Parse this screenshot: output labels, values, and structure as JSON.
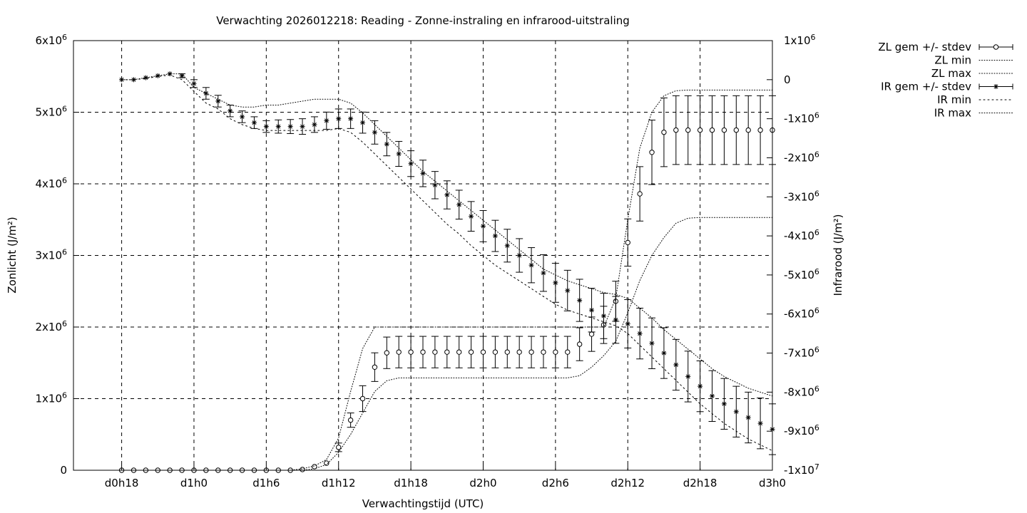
{
  "chart_data": {
    "type": "line",
    "title": "Verwachting 2026012218: Reading - Zonne-instraling en infrarood-uitstraling",
    "xlabel": "Verwachtingstijd (UTC)",
    "ylabel_left": "Zonlicht (J/m²)",
    "ylabel_right": "Infrarood (J/m²)",
    "x_unit": "forecast hour",
    "xlim": [
      14,
      72
    ],
    "x_ticks": [
      {
        "x": 18,
        "label": "d0h18"
      },
      {
        "x": 24,
        "label": "d1h0"
      },
      {
        "x": 30,
        "label": "d1h6"
      },
      {
        "x": 36,
        "label": "d1h12"
      },
      {
        "x": 42,
        "label": "d1h18"
      },
      {
        "x": 48,
        "label": "d2h0"
      },
      {
        "x": 54,
        "label": "d2h6"
      },
      {
        "x": 60,
        "label": "d2h12"
      },
      {
        "x": 66,
        "label": "d2h18"
      },
      {
        "x": 72,
        "label": "d3h0"
      }
    ],
    "ylim_left": [
      0,
      6000000
    ],
    "y_ticks_left": [
      {
        "v": 0,
        "base": "0",
        "exp": ""
      },
      {
        "v": 1000000,
        "base": "1x10",
        "exp": "6"
      },
      {
        "v": 2000000,
        "base": "2x10",
        "exp": "6"
      },
      {
        "v": 3000000,
        "base": "3x10",
        "exp": "6"
      },
      {
        "v": 4000000,
        "base": "4x10",
        "exp": "6"
      },
      {
        "v": 5000000,
        "base": "5x10",
        "exp": "6"
      },
      {
        "v": 6000000,
        "base": "6x10",
        "exp": "6"
      }
    ],
    "ylim_right": [
      -10000000,
      1000000
    ],
    "y_ticks_right": [
      {
        "v": 1000000,
        "base": "1x10",
        "exp": "6"
      },
      {
        "v": 0,
        "base": "0",
        "exp": ""
      },
      {
        "v": -1000000,
        "base": "-1x10",
        "exp": "6"
      },
      {
        "v": -2000000,
        "base": "-2x10",
        "exp": "6"
      },
      {
        "v": -3000000,
        "base": "-3x10",
        "exp": "6"
      },
      {
        "v": -4000000,
        "base": "-4x10",
        "exp": "6"
      },
      {
        "v": -5000000,
        "base": "-5x10",
        "exp": "6"
      },
      {
        "v": -6000000,
        "base": "-6x10",
        "exp": "6"
      },
      {
        "v": -7000000,
        "base": "-7x10",
        "exp": "6"
      },
      {
        "v": -8000000,
        "base": "-8x10",
        "exp": "6"
      },
      {
        "v": -9000000,
        "base": "-9x10",
        "exp": "6"
      },
      {
        "v": -10000000,
        "base": "-1x10",
        "exp": "7"
      }
    ],
    "grid": true,
    "legend_position": "outside right, top",
    "legend": [
      "ZL gem +/- stdev",
      "ZL min",
      "ZL max",
      "IR gem +/- stdev",
      "IR min",
      "IR max"
    ],
    "x": [
      18,
      19,
      20,
      21,
      22,
      23,
      24,
      25,
      26,
      27,
      28,
      29,
      30,
      31,
      32,
      33,
      34,
      35,
      36,
      37,
      38,
      39,
      40,
      41,
      42,
      43,
      44,
      45,
      46,
      47,
      48,
      49,
      50,
      51,
      52,
      53,
      54,
      55,
      56,
      57,
      58,
      59,
      60,
      61,
      62,
      63,
      64,
      65,
      66,
      67,
      68,
      69,
      70,
      71,
      72
    ],
    "series": [
      {
        "name": "ZL gem +/- stdev",
        "axis": "left",
        "marker": "circle",
        "values": [
          0,
          0,
          0,
          0,
          0,
          0,
          0,
          0,
          0,
          0,
          0,
          0,
          0,
          0,
          0,
          10000,
          50000,
          100000,
          320000,
          700000,
          1000000,
          1440000,
          1640000,
          1650000,
          1650000,
          1650000,
          1650000,
          1650000,
          1650000,
          1650000,
          1650000,
          1650000,
          1650000,
          1650000,
          1650000,
          1650000,
          1650000,
          1650000,
          1760000,
          1900000,
          2030000,
          2360000,
          3180000,
          3860000,
          4440000,
          4720000,
          4750000,
          4750000,
          4750000,
          4750000,
          4750000,
          4750000,
          4750000,
          4750000,
          4750000
        ],
        "stdev": [
          0,
          0,
          0,
          0,
          0,
          0,
          0,
          0,
          0,
          0,
          0,
          0,
          0,
          0,
          0,
          0,
          0,
          0,
          60000,
          100000,
          180000,
          200000,
          220000,
          220000,
          220000,
          220000,
          220000,
          220000,
          220000,
          220000,
          220000,
          220000,
          220000,
          220000,
          220000,
          220000,
          220000,
          220000,
          230000,
          240000,
          260000,
          280000,
          330000,
          380000,
          450000,
          480000,
          480000,
          480000,
          480000,
          480000,
          480000,
          480000,
          480000,
          480000,
          480000
        ]
      },
      {
        "name": "ZL min",
        "axis": "left",
        "values": [
          0,
          0,
          0,
          0,
          0,
          0,
          0,
          0,
          0,
          0,
          0,
          0,
          0,
          0,
          0,
          0,
          20000,
          80000,
          250000,
          500000,
          800000,
          1100000,
          1250000,
          1290000,
          1290000,
          1290000,
          1290000,
          1290000,
          1290000,
          1290000,
          1290000,
          1290000,
          1290000,
          1290000,
          1290000,
          1290000,
          1290000,
          1290000,
          1320000,
          1440000,
          1600000,
          1800000,
          2200000,
          2650000,
          3000000,
          3250000,
          3450000,
          3520000,
          3530000,
          3530000,
          3530000,
          3530000,
          3530000,
          3530000,
          3530000
        ]
      },
      {
        "name": "ZL max",
        "axis": "left",
        "values": [
          0,
          0,
          0,
          0,
          0,
          0,
          0,
          0,
          0,
          0,
          0,
          0,
          0,
          0,
          0,
          20000,
          60000,
          150000,
          450000,
          1100000,
          1700000,
          2000000,
          2000000,
          2000000,
          2000000,
          2000000,
          2000000,
          2000000,
          2000000,
          2000000,
          2000000,
          2000000,
          2000000,
          2000000,
          2000000,
          2000000,
          2000000,
          2000000,
          2000000,
          2000000,
          2000000,
          2400000,
          3500000,
          4500000,
          5000000,
          5230000,
          5300000,
          5310000,
          5310000,
          5310000,
          5310000,
          5310000,
          5310000,
          5310000,
          5310000
        ]
      },
      {
        "name": "IR gem +/- stdev",
        "axis": "right",
        "marker": "star",
        "values": [
          0,
          0,
          50000,
          100000,
          150000,
          100000,
          -100000,
          -350000,
          -550000,
          -800000,
          -950000,
          -1100000,
          -1200000,
          -1200000,
          -1200000,
          -1200000,
          -1150000,
          -1050000,
          -1000000,
          -1000000,
          -1100000,
          -1350000,
          -1650000,
          -1900000,
          -2150000,
          -2400000,
          -2700000,
          -2950000,
          -3200000,
          -3500000,
          -3750000,
          -4000000,
          -4250000,
          -4500000,
          -4750000,
          -4950000,
          -5200000,
          -5400000,
          -5650000,
          -5900000,
          -6050000,
          -6150000,
          -6250000,
          -6500000,
          -6750000,
          -7000000,
          -7300000,
          -7600000,
          -7850000,
          -8100000,
          -8300000,
          -8500000,
          -8650000,
          -8800000,
          -8950000
        ],
        "stdev": [
          0,
          0,
          0,
          0,
          0,
          50000,
          100000,
          150000,
          150000,
          150000,
          150000,
          150000,
          150000,
          170000,
          180000,
          200000,
          200000,
          220000,
          250000,
          250000,
          270000,
          300000,
          300000,
          320000,
          330000,
          340000,
          350000,
          360000,
          370000,
          380000,
          400000,
          400000,
          420000,
          430000,
          450000,
          470000,
          500000,
          520000,
          540000,
          560000,
          580000,
          600000,
          620000,
          650000,
          650000,
          650000,
          650000,
          650000,
          650000,
          650000,
          650000,
          650000,
          650000,
          650000,
          650000
        ]
      },
      {
        "name": "IR min",
        "axis": "right",
        "values": [
          0,
          0,
          30000,
          80000,
          120000,
          0,
          -300000,
          -600000,
          -750000,
          -1000000,
          -1150000,
          -1250000,
          -1300000,
          -1300000,
          -1300000,
          -1300000,
          -1300000,
          -1300000,
          -1250000,
          -1350000,
          -1600000,
          -1900000,
          -2200000,
          -2500000,
          -2800000,
          -3100000,
          -3400000,
          -3700000,
          -3950000,
          -4250000,
          -4500000,
          -4750000,
          -4950000,
          -5150000,
          -5350000,
          -5550000,
          -5750000,
          -5900000,
          -6000000,
          -6100000,
          -6200000,
          -6300000,
          -6500000,
          -6800000,
          -7100000,
          -7400000,
          -7700000,
          -8000000,
          -8300000,
          -8550000,
          -8800000,
          -9000000,
          -9200000,
          -9350000,
          -9500000
        ]
      },
      {
        "name": "IR max",
        "axis": "right",
        "values": [
          0,
          0,
          50000,
          100000,
          150000,
          150000,
          -200000,
          -350000,
          -500000,
          -650000,
          -700000,
          -700000,
          -650000,
          -650000,
          -600000,
          -550000,
          -500000,
          -500000,
          -500000,
          -600000,
          -850000,
          -1150000,
          -1450000,
          -1750000,
          -2050000,
          -2350000,
          -2600000,
          -2850000,
          -3100000,
          -3350000,
          -3600000,
          -3850000,
          -4100000,
          -4350000,
          -4600000,
          -4850000,
          -5000000,
          -5150000,
          -5250000,
          -5350000,
          -5450000,
          -5500000,
          -5600000,
          -5850000,
          -6100000,
          -6400000,
          -6650000,
          -6900000,
          -7150000,
          -7400000,
          -7600000,
          -7750000,
          -7900000,
          -8000000,
          -8100000
        ]
      }
    ]
  }
}
